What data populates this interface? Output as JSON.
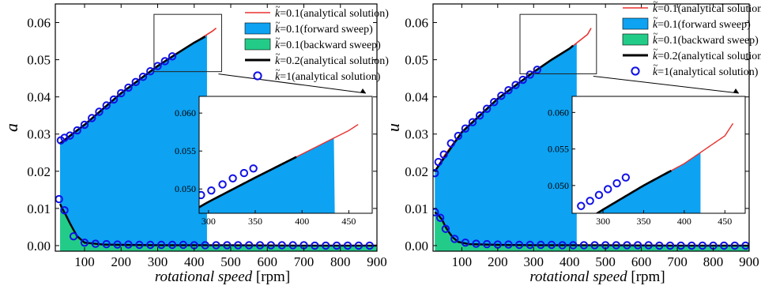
{
  "colors": {
    "analytical_k01": "#e8312f",
    "forward_fill": "#0da2f2",
    "backward_fill": "#22cc88",
    "analytical_k02": "#000000",
    "analytical_k1": "#1010e6",
    "frame": "#000000"
  },
  "chart_data": [
    {
      "type": "area",
      "xlabel_italic": "rotational speed",
      "xlabel_unit": "[rpm]",
      "ylabel": "a",
      "xlim": [
        20,
        900
      ],
      "ylim": [
        -0.0015,
        0.065
      ],
      "xticks": [
        100,
        200,
        300,
        400,
        500,
        600,
        700,
        800,
        900
      ],
      "xtick_labels": [
        "100",
        "200",
        "300",
        "400",
        "500",
        "600",
        "700",
        "800",
        "900"
      ],
      "yticks": [
        0,
        0.01,
        0.02,
        0.03,
        0.04,
        0.05,
        0.06
      ],
      "ytick_labels": [
        "0.00",
        "0.01",
        "0.02",
        "0.03",
        "0.04",
        "0.05",
        "0.06"
      ],
      "legend_placement": "top-right",
      "legend": [
        {
          "k": "k",
          "value": "=0.1",
          "desc": "(analytical solution)",
          "style": "red-line"
        },
        {
          "k": "k",
          "value": "=0.1",
          "desc": "(forward sweep)",
          "style": "blue-fill"
        },
        {
          "k": "k",
          "value": "=0.1",
          "desc": "(backward sweep)",
          "style": "green-fill"
        },
        {
          "k": "k",
          "value": "=0.2",
          "desc": "(analytical solution)",
          "style": "black-line"
        },
        {
          "k": "k",
          "value": "=1",
          "desc": "(analytical solution)",
          "style": "blue-circle"
        }
      ],
      "forward_jump_x": 435,
      "analytical_k01": {
        "x": [
          33,
          60,
          100,
          150,
          200,
          250,
          300,
          350,
          400,
          450,
          460
        ],
        "y": [
          0.0275,
          0.0295,
          0.0325,
          0.0368,
          0.041,
          0.0448,
          0.0483,
          0.0515,
          0.0546,
          0.0577,
          0.0585
        ]
      },
      "analytical_k02": {
        "x": [
          33,
          100,
          200,
          300,
          350,
          400,
          430
        ],
        "y": [
          0.0275,
          0.0325,
          0.041,
          0.0483,
          0.0515,
          0.0546,
          0.0562
        ]
      },
      "k01_lower_branch": {
        "x": [
          33,
          40,
          50,
          60,
          70,
          80,
          100,
          150,
          200,
          300,
          500,
          700,
          900
        ],
        "y": [
          0.0112,
          0.0098,
          0.008,
          0.006,
          0.0042,
          0.0025,
          0.0008,
          0.0003,
          0.0002,
          0.0001,
          0.0001,
          0.0,
          0.0
        ]
      },
      "k1_markers_upper": {
        "x": [
          35,
          45,
          60,
          80,
          100,
          120,
          140,
          160,
          180,
          200,
          220,
          240,
          260,
          280,
          300,
          320,
          340
        ],
        "y": [
          0.0283,
          0.029,
          0.0296,
          0.031,
          0.0325,
          0.0343,
          0.036,
          0.0377,
          0.0393,
          0.041,
          0.0425,
          0.044,
          0.0454,
          0.0469,
          0.0483,
          0.0496,
          0.0509
        ]
      },
      "k1_markers_lower": {
        "x": [
          30,
          45,
          70,
          100,
          130,
          160,
          190,
          220,
          250,
          280,
          310,
          340,
          370,
          400,
          430,
          460,
          490,
          520,
          550,
          580,
          610,
          640,
          670,
          700,
          730,
          760,
          790,
          820,
          850,
          880
        ],
        "y": [
          0.0125,
          0.0095,
          0.0025,
          0.0008,
          0.0005,
          0.0004,
          0.0003,
          0.0003,
          0.0002,
          0.0002,
          0.0002,
          0.0002,
          0.0002,
          0.0001,
          0.0001,
          0.0001,
          0.0001,
          0.0001,
          0.0001,
          0.0001,
          0.0001,
          0.0001,
          0.0001,
          0.0001,
          0.0,
          0.0,
          0.0,
          0.0,
          0.0,
          0.0
        ]
      },
      "inset": {
        "xlim": [
          290,
          475
        ],
        "ylim": [
          0.0468,
          0.0622
        ],
        "xticks": [
          300,
          350,
          400,
          450
        ],
        "xtick_labels": [
          "300",
          "350",
          "400",
          "450"
        ],
        "yticks": [
          0.05,
          0.055,
          0.06
        ],
        "ytick_labels": [
          "0.050",
          "0.055",
          "0.060"
        ],
        "k1_markers": {
          "x": [
            292,
            303,
            315,
            326,
            338,
            348
          ],
          "y": [
            0.0492,
            0.0498,
            0.0506,
            0.0514,
            0.0521,
            0.0527
          ]
        },
        "k02_range": [
          290,
          395
        ],
        "forward_end": 435,
        "k01_end": 460
      }
    },
    {
      "type": "area",
      "xlabel_italic": "rotational speed",
      "xlabel_unit": "[rpm]",
      "ylabel": "u",
      "xlim": [
        20,
        900
      ],
      "ylim": [
        -0.0015,
        0.065
      ],
      "xticks": [
        100,
        200,
        300,
        400,
        500,
        600,
        700,
        800,
        900
      ],
      "xtick_labels": [
        "100",
        "200",
        "300",
        "400",
        "500",
        "600",
        "700",
        "800",
        "900"
      ],
      "yticks": [
        0,
        0.01,
        0.02,
        0.03,
        0.04,
        0.05,
        0.06
      ],
      "ytick_labels": [
        "0.00",
        "0.01",
        "0.02",
        "0.03",
        "0.04",
        "0.05",
        "0.06"
      ],
      "legend_placement": "top-right",
      "legend": [
        {
          "k": "k",
          "value": "=0.1",
          "desc": "(analytical solution)",
          "style": "red-line"
        },
        {
          "k": "k",
          "value": "=0.1",
          "desc": "(forward sweep)",
          "style": "blue-fill"
        },
        {
          "k": "k",
          "value": "=0.1",
          "desc": "(backward sweep)",
          "style": "green-fill"
        },
        {
          "k": "k",
          "value": "=0.2",
          "desc": "(analytical solution)",
          "style": "black-line"
        },
        {
          "k": "k",
          "value": "=1",
          "desc": "(analytical solution)",
          "style": "blue-circle"
        }
      ],
      "forward_jump_x": 420,
      "analytical_k01": {
        "x": [
          25,
          50,
          80,
          100,
          150,
          200,
          250,
          300,
          350,
          400,
          450,
          460
        ],
        "y": [
          0.02,
          0.024,
          0.028,
          0.0305,
          0.035,
          0.0395,
          0.0432,
          0.0467,
          0.05,
          0.053,
          0.0568,
          0.0585
        ]
      },
      "analytical_k02": {
        "x": [
          25,
          100,
          200,
          300,
          350,
          400,
          410
        ],
        "y": [
          0.02,
          0.0305,
          0.0395,
          0.0467,
          0.05,
          0.053,
          0.0538
        ]
      },
      "k01_lower_branch": {
        "x": [
          25,
          35,
          45,
          55,
          65,
          75,
          90,
          120,
          200,
          300,
          500,
          700,
          900
        ],
        "y": [
          0.009,
          0.0082,
          0.007,
          0.005,
          0.0035,
          0.0022,
          0.001,
          0.0004,
          0.0002,
          0.0001,
          0.0001,
          0.0,
          0.0
        ]
      },
      "k1_markers_upper": {
        "x": [
          25,
          35,
          50,
          70,
          90,
          110,
          130,
          150,
          170,
          190,
          210,
          230,
          250,
          270,
          290,
          310
        ],
        "y": [
          0.0195,
          0.0225,
          0.0245,
          0.0275,
          0.0295,
          0.0315,
          0.0332,
          0.035,
          0.0368,
          0.0386,
          0.0403,
          0.0418,
          0.0432,
          0.0446,
          0.046,
          0.0473
        ]
      },
      "k1_markers_lower": {
        "x": [
          25,
          40,
          55,
          80,
          110,
          140,
          170,
          200,
          230,
          260,
          290,
          320,
          350,
          380,
          410,
          440,
          470,
          500,
          530,
          560,
          590,
          620,
          650,
          680,
          710,
          740,
          770,
          800,
          830,
          860,
          890
        ],
        "y": [
          0.009,
          0.0075,
          0.0045,
          0.0018,
          0.0008,
          0.0005,
          0.0004,
          0.0003,
          0.0003,
          0.0002,
          0.0002,
          0.0002,
          0.0002,
          0.0001,
          0.0001,
          0.0001,
          0.0001,
          0.0001,
          0.0001,
          0.0001,
          0.0001,
          0.0001,
          0.0,
          0.0,
          0.0,
          0.0,
          0.0,
          0.0,
          0.0,
          0.0,
          0.0
        ]
      },
      "inset": {
        "xlim": [
          262,
          475
        ],
        "ylim": [
          0.0462,
          0.0622
        ],
        "xticks": [
          300,
          350,
          400,
          450
        ],
        "xtick_labels": [
          "300",
          "350",
          "400",
          "450"
        ],
        "yticks": [
          0.05,
          0.055,
          0.06
        ],
        "ytick_labels": [
          "0.050",
          "0.055",
          "0.060"
        ],
        "k1_markers": {
          "x": [
            273,
            284,
            295,
            306,
            317,
            328
          ],
          "y": [
            0.0472,
            0.0479,
            0.0487,
            0.0495,
            0.0503,
            0.0511
          ]
        },
        "k02_range": [
          262,
          385
        ],
        "forward_end": 420,
        "k01_end": 460
      }
    }
  ]
}
